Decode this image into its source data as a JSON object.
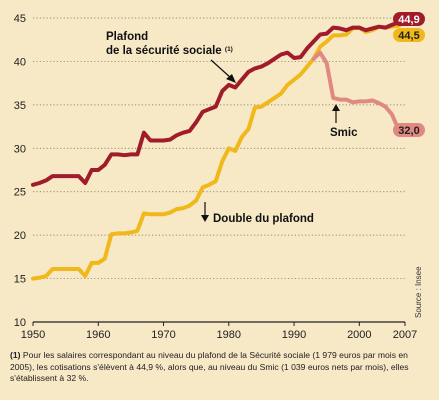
{
  "chart_data": {
    "type": "line",
    "xlim": [
      1950,
      2007
    ],
    "ylim": [
      10,
      45
    ],
    "x_ticks": [
      "1950",
      "1960",
      "1970",
      "1980",
      "1990",
      "2000",
      "2007"
    ],
    "x_tick_values": [
      1950,
      1960,
      1970,
      1980,
      1990,
      2000,
      2007
    ],
    "y_ticks": [
      "10",
      "15",
      "20",
      "25",
      "30",
      "35",
      "40",
      "45"
    ],
    "y_tick_values": [
      10,
      15,
      20,
      25,
      30,
      35,
      40,
      45
    ],
    "grid": "horizontal dotted",
    "source": "Source : Insee",
    "series": [
      {
        "name": "Double du plafond",
        "color": "#f0b81a",
        "end_label": "44,5",
        "x": [
          1950,
          1951,
          1952,
          1953,
          1954,
          1955,
          1956,
          1957,
          1958,
          1959,
          1960,
          1961,
          1962,
          1963,
          1964,
          1965,
          1966,
          1967,
          1968,
          1969,
          1970,
          1971,
          1972,
          1973,
          1974,
          1975,
          1976,
          1977,
          1978,
          1979,
          1980,
          1981,
          1982,
          1983,
          1984,
          1985,
          1986,
          1987,
          1988,
          1989,
          1990,
          1991,
          1992,
          1993,
          1994,
          1995,
          1996,
          1997,
          1998,
          1999,
          2000,
          2001,
          2002,
          2003,
          2004,
          2005,
          2006,
          2007
        ],
        "values": [
          15.0,
          15.1,
          15.3,
          16.1,
          16.1,
          16.1,
          16.1,
          16.1,
          15.3,
          16.8,
          16.8,
          17.3,
          20.1,
          20.2,
          20.2,
          20.3,
          20.5,
          22.5,
          22.4,
          22.4,
          22.4,
          22.6,
          23.0,
          23.1,
          23.4,
          24.0,
          25.5,
          25.8,
          26.2,
          28.5,
          30.0,
          29.7,
          31.3,
          32.2,
          34.7,
          34.8,
          35.3,
          35.8,
          36.3,
          37.3,
          37.9,
          38.5,
          39.4,
          40.3,
          41.7,
          42.3,
          43.0,
          43.0,
          43.1,
          43.8,
          43.9,
          43.4,
          43.6,
          44.0,
          43.9,
          44.0,
          44.1,
          44.5
        ]
      },
      {
        "name": "Plafond de la sécurité sociale",
        "name_marker": "(1)",
        "color": "#a01c2a",
        "end_label": "44,9",
        "x": [
          1950,
          1951,
          1952,
          1953,
          1954,
          1955,
          1956,
          1957,
          1958,
          1959,
          1960,
          1961,
          1962,
          1963,
          1964,
          1965,
          1966,
          1967,
          1968,
          1969,
          1970,
          1971,
          1972,
          1973,
          1974,
          1975,
          1976,
          1977,
          1978,
          1979,
          1980,
          1981,
          1982,
          1983,
          1984,
          1985,
          1986,
          1987,
          1988,
          1989,
          1990,
          1991,
          1992,
          1993,
          1994,
          1995,
          1996,
          1997,
          1998,
          1999,
          2000,
          2001,
          2002,
          2003,
          2004,
          2005,
          2006,
          2007
        ],
        "values": [
          25.8,
          26.0,
          26.3,
          26.8,
          26.8,
          26.8,
          26.8,
          26.8,
          26.0,
          27.5,
          27.5,
          28.1,
          29.3,
          29.3,
          29.2,
          29.3,
          29.3,
          31.8,
          30.9,
          30.9,
          30.9,
          31.0,
          31.5,
          31.8,
          32.0,
          33.0,
          34.2,
          34.5,
          34.8,
          36.6,
          37.3,
          37.0,
          37.9,
          38.8,
          39.2,
          39.4,
          39.8,
          40.3,
          40.8,
          41.0,
          40.4,
          40.5,
          41.5,
          42.3,
          43.1,
          43.2,
          43.9,
          43.8,
          43.6,
          43.9,
          43.9,
          43.6,
          43.8,
          44.0,
          43.9,
          44.2,
          44.5,
          44.9
        ]
      },
      {
        "name": "Smic",
        "color": "#df8982",
        "end_label": "32,0",
        "x": [
          1993,
          1994,
          1995,
          1996,
          1997,
          1998,
          1999,
          2000,
          2001,
          2002,
          2003,
          2004,
          2005,
          2006,
          2007
        ],
        "values": [
          40.3,
          41.0,
          39.8,
          35.8,
          35.6,
          35.6,
          35.3,
          35.4,
          35.4,
          35.5,
          35.2,
          34.8,
          33.9,
          32.2,
          32.0
        ]
      }
    ]
  },
  "footnote": {
    "marker": "(1)",
    "text": " Pour les salaires correspondant au niveau du plafond de la Sécurité sociale (1 979 euros par mois en 2005), les cotisations s'élèvent à 44,9 %, alors que, au niveau du Smic (1 039 euros nets par mois), elles s'établissent à 32 %."
  }
}
